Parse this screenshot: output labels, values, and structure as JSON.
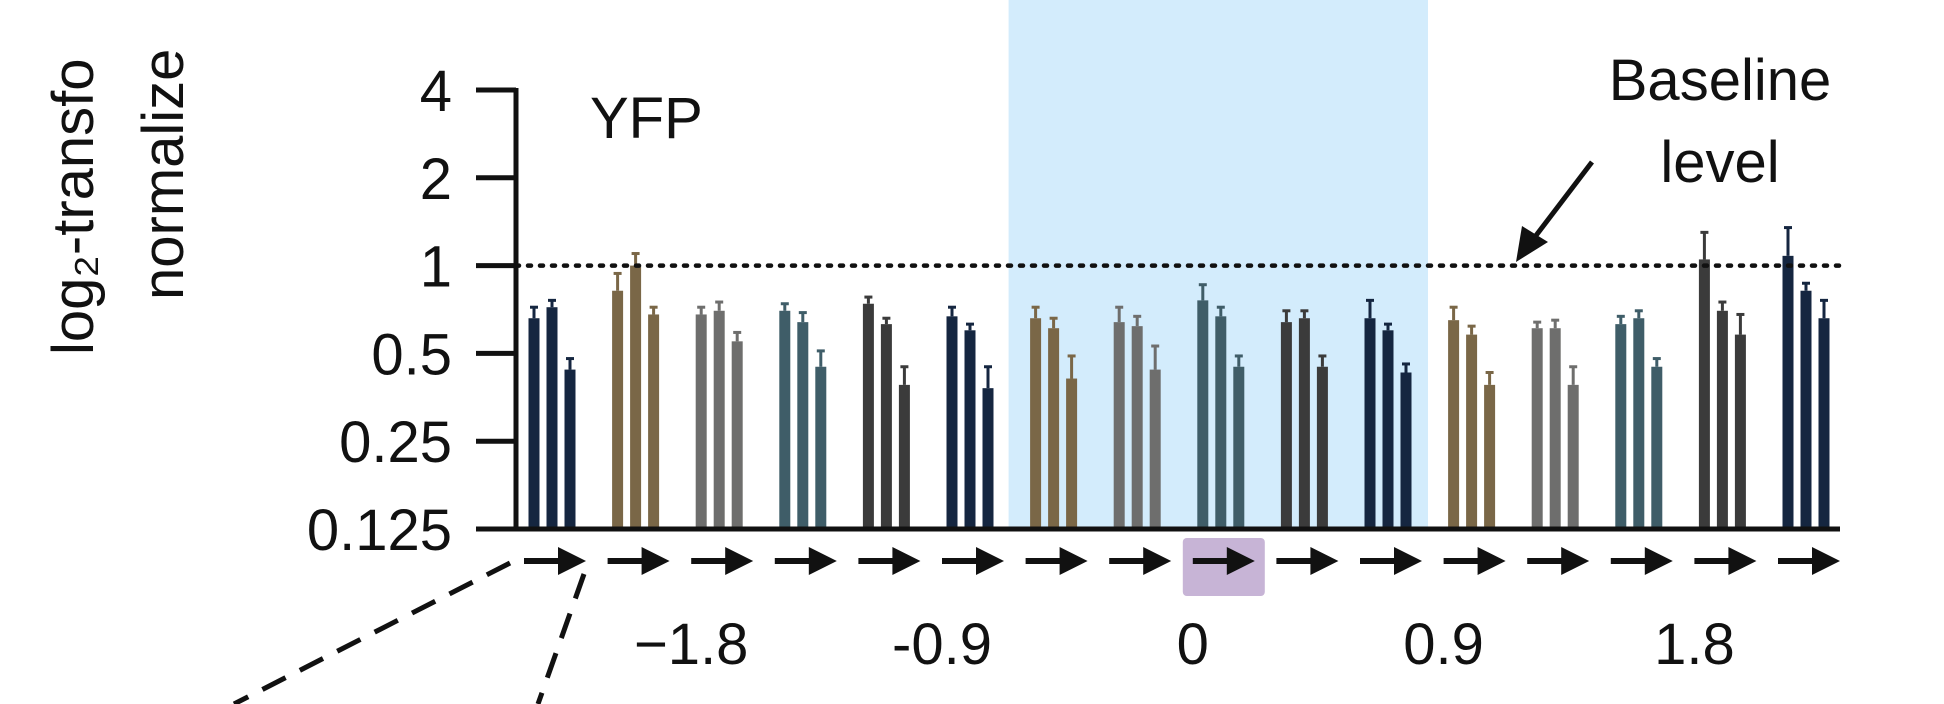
{
  "chart_data": {
    "type": "bar",
    "title": "YFP",
    "ylabel_lines": [
      "log₂-transfo",
      "normalize"
    ],
    "yscale": "log2",
    "ylim": [
      0.125,
      4
    ],
    "yticks": [
      "4",
      "2",
      "1",
      "0.5",
      "0.25",
      "0.125"
    ],
    "ytick_values": [
      4,
      2,
      1,
      0.5,
      0.25,
      0.125
    ],
    "x_tick_labels": [
      {
        "text": "−1.8",
        "group": 2
      },
      {
        "text": "-0.9",
        "group": 5
      },
      {
        "text": "0",
        "group": 8
      },
      {
        "text": "0.9",
        "group": 11
      },
      {
        "text": "1.8",
        "group": 14
      }
    ],
    "baseline": {
      "value": 1,
      "style": "dotted",
      "label_lines": [
        "Baseline",
        "level"
      ]
    },
    "highlight_band": {
      "from_group": 6,
      "to_group": 10,
      "color": "#d3ecfc"
    },
    "highlight_marker_group": 8,
    "highlight_marker_color": "#c7b4d6",
    "groups": [
      {
        "color": "#152640",
        "values": [
          0.66,
          0.72,
          0.44
        ],
        "errors": [
          0.06,
          0.04,
          0.04
        ]
      },
      {
        "color": "#7a6747",
        "values": [
          0.82,
          1.0,
          0.68
        ],
        "errors": [
          0.12,
          0.1,
          0.04
        ]
      },
      {
        "color": "#6e6e6d",
        "values": [
          0.68,
          0.7,
          0.55
        ],
        "errors": [
          0.04,
          0.05,
          0.04
        ]
      },
      {
        "color": "#3f5d68",
        "values": [
          0.7,
          0.64,
          0.45
        ],
        "errors": [
          0.04,
          0.05,
          0.06
        ]
      },
      {
        "color": "#3b3b3b",
        "values": [
          0.74,
          0.63,
          0.39
        ],
        "errors": [
          0.04,
          0.03,
          0.06
        ]
      },
      {
        "color": "#152640",
        "values": [
          0.67,
          0.6,
          0.38
        ],
        "errors": [
          0.05,
          0.03,
          0.07
        ]
      },
      {
        "color": "#7a6747",
        "values": [
          0.66,
          0.61,
          0.41
        ],
        "errors": [
          0.06,
          0.05,
          0.08
        ]
      },
      {
        "color": "#6e6e6d",
        "values": [
          0.64,
          0.62,
          0.44
        ],
        "errors": [
          0.08,
          0.05,
          0.09
        ]
      },
      {
        "color": "#3f5d68",
        "values": [
          0.76,
          0.67,
          0.45
        ],
        "errors": [
          0.1,
          0.05,
          0.04
        ]
      },
      {
        "color": "#3b3b3b",
        "values": [
          0.64,
          0.66,
          0.45
        ],
        "errors": [
          0.06,
          0.04,
          0.04
        ]
      },
      {
        "color": "#152640",
        "values": [
          0.66,
          0.6,
          0.43
        ],
        "errors": [
          0.1,
          0.03,
          0.03
        ]
      },
      {
        "color": "#7a6747",
        "values": [
          0.65,
          0.58,
          0.39
        ],
        "errors": [
          0.07,
          0.04,
          0.04
        ]
      },
      {
        "color": "#6e6e6d",
        "values": [
          0.61,
          0.61,
          0.39
        ],
        "errors": [
          0.03,
          0.04,
          0.06
        ]
      },
      {
        "color": "#3f5d68",
        "values": [
          0.63,
          0.66,
          0.45
        ],
        "errors": [
          0.04,
          0.04,
          0.03
        ]
      },
      {
        "color": "#3b3b3b",
        "values": [
          1.05,
          0.7,
          0.58
        ],
        "errors": [
          0.25,
          0.05,
          0.1
        ]
      },
      {
        "color": "#152640",
        "values": [
          1.08,
          0.82,
          0.66
        ],
        "errors": [
          0.27,
          0.05,
          0.1
        ]
      }
    ]
  }
}
